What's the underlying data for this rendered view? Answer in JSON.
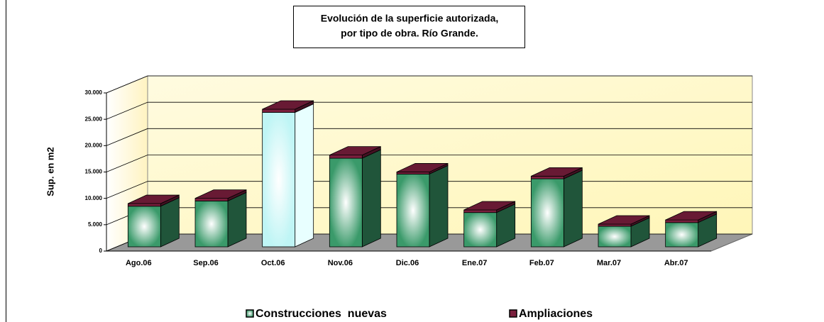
{
  "chart_data": {
    "type": "bar3d_stacked",
    "title": "Evolución de la superficie autorizada,",
    "subtitle": "por tipo de obra. Río Grande.",
    "ylabel": "Sup. en m2",
    "categories": [
      "Ago.06",
      "Sep.06",
      "Oct.06",
      "Nov.06",
      "Dic.06",
      "Ene.07",
      "Feb.07",
      "Mar.07",
      "Abr.07"
    ],
    "series": [
      {
        "name": "Construcciones  nuevas",
        "color": "#3a9a6a",
        "colors": [
          "#3a9a6a",
          "#3a9a6a",
          "#ffffff",
          "#3a9a6a",
          "#3a9a6a",
          "#3a9a6a",
          "#3a9a6a",
          "#3a9a6a",
          "#3a9a6a"
        ],
        "values": [
          7700,
          8700,
          25500,
          16800,
          13800,
          6500,
          12900,
          3900,
          4600
        ]
      },
      {
        "name": "Ampliaciones",
        "color": "#7a1f3d",
        "values": [
          500,
          500,
          600,
          600,
          400,
          500,
          500,
          400,
          500
        ]
      }
    ],
    "ylim": [
      0,
      30000
    ],
    "yticks": [
      0,
      {
        "value": 5000,
        "label": "5.000"
      },
      {
        "value": 10000,
        "label": "10.000"
      },
      {
        "value": 15000,
        "label": "15.000"
      },
      {
        "value": 20000,
        "label": "20.000"
      },
      {
        "value": 25000,
        "label": "25.000"
      },
      {
        "value": 30000,
        "label": "30.000"
      }
    ],
    "grid": true,
    "legend": "bottom"
  }
}
